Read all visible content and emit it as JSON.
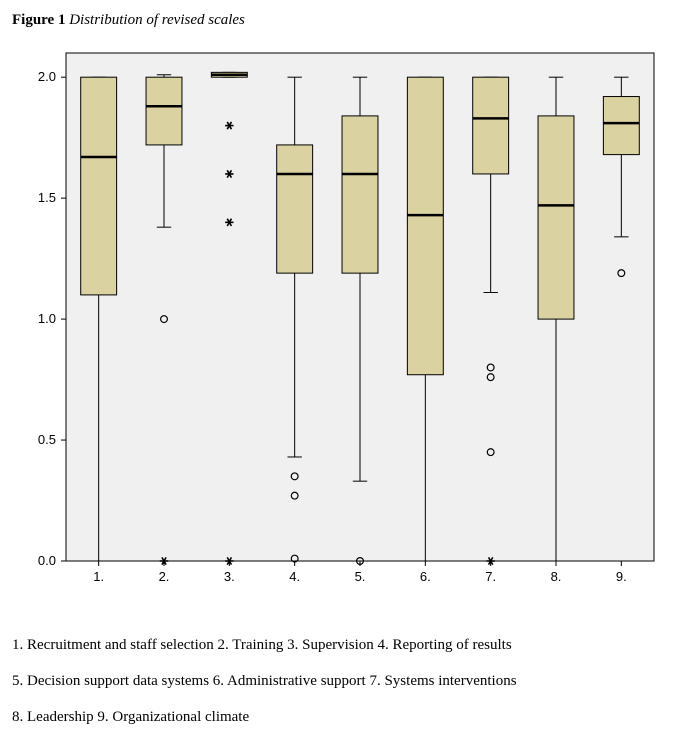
{
  "title_prefix": "Figure 1",
  "title_text": "Distribution of revised scales",
  "chart": {
    "type": "boxplot",
    "background_color": "#ffffff",
    "plot_bg": "#f0f0f0",
    "plot_border": "#000000",
    "box_fill": "#dad3a1",
    "box_stroke": "#000000",
    "median_stroke": "#000000",
    "whisker_stroke": "#000000",
    "outlier_stroke": "#000000",
    "tick_font_size": 13,
    "ylim": [
      0,
      2.1
    ],
    "ytick_values": [
      0.0,
      0.5,
      1.0,
      1.5,
      2.0
    ],
    "ytick_labels": [
      "0.0",
      "0.5",
      "1.0",
      "1.5",
      "2.0"
    ],
    "xtick_labels": [
      "1.",
      "2.",
      "3.",
      "4.",
      "5.",
      "6.",
      "7.",
      "8.",
      "9."
    ],
    "box_rel_width": 0.55,
    "whisker_cap_rel": 0.22,
    "median_width": 2.5,
    "box_line_width": 1,
    "whisker_line_width": 1,
    "series": [
      {
        "q1": 1.1,
        "median": 1.67,
        "q3": 2.0,
        "wlo": 0.0,
        "whi": 2.0,
        "outliers_circle": [],
        "outliers_star": []
      },
      {
        "q1": 1.72,
        "median": 1.88,
        "q3": 2.0,
        "wlo": 1.38,
        "whi": 2.01,
        "outliers_circle": [
          1.0
        ],
        "outliers_star": [
          0.0
        ]
      },
      {
        "q1": 2.0,
        "median": 2.01,
        "q3": 2.02,
        "wlo": 2.0,
        "whi": 2.02,
        "outliers_circle": [],
        "outliers_star": [
          1.8,
          1.6,
          1.4,
          0.0
        ]
      },
      {
        "q1": 1.19,
        "median": 1.6,
        "q3": 1.72,
        "wlo": 0.43,
        "whi": 2.0,
        "outliers_circle": [
          0.35,
          0.27,
          0.01
        ],
        "outliers_star": []
      },
      {
        "q1": 1.19,
        "median": 1.6,
        "q3": 1.84,
        "wlo": 0.33,
        "whi": 2.0,
        "outliers_circle": [
          0.0
        ],
        "outliers_star": []
      },
      {
        "q1": 0.77,
        "median": 1.43,
        "q3": 2.0,
        "wlo": 0.0,
        "whi": 2.0,
        "outliers_circle": [],
        "outliers_star": []
      },
      {
        "q1": 1.6,
        "median": 1.83,
        "q3": 2.0,
        "wlo": 1.11,
        "whi": 2.0,
        "outliers_circle": [
          0.8,
          0.76,
          0.45
        ],
        "outliers_star": [
          0.0
        ]
      },
      {
        "q1": 1.0,
        "median": 1.47,
        "q3": 1.84,
        "wlo": 0.0,
        "whi": 2.0,
        "outliers_circle": [],
        "outliers_star": []
      },
      {
        "q1": 1.68,
        "median": 1.81,
        "q3": 1.92,
        "wlo": 1.34,
        "whi": 2.0,
        "outliers_circle": [
          1.19
        ],
        "outliers_star": []
      }
    ]
  },
  "legend_lines": [
    "1. Recruitment and staff selection  2. Training  3. Supervision  4. Reporting of results",
    "5. Decision support data systems  6. Administrative support  7. Systems interventions",
    "8. Leadership  9. Organizational climate"
  ]
}
